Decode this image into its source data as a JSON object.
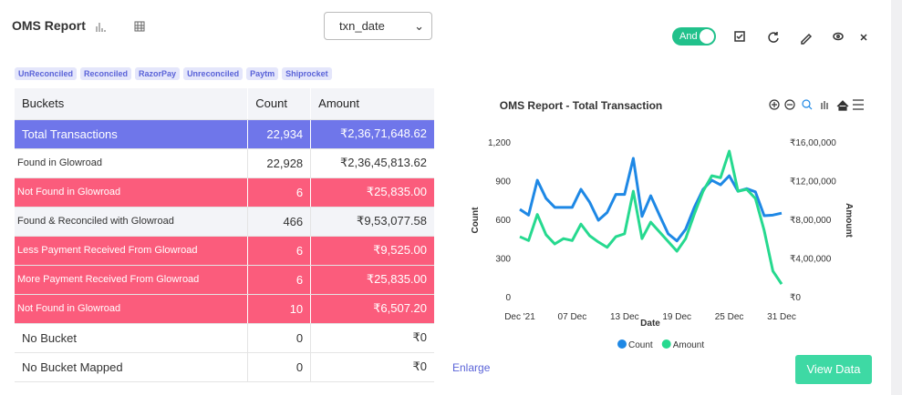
{
  "header": {
    "title": "OMS Report",
    "select": "txn_date",
    "toggle": "And"
  },
  "tags": [
    "UnReconciled",
    "Reconciled",
    "RazorPay",
    "Unreconciled",
    "Paytm",
    "Shiprocket"
  ],
  "table": {
    "columns": [
      "Buckets",
      "Count",
      "Amount"
    ],
    "rows": [
      {
        "cells": [
          "Total Transactions",
          "22,934",
          "₹2,36,71,648.62"
        ],
        "color": "#6f76ea"
      },
      {
        "cells": [
          "Found in  Glowroad",
          "22,928",
          "₹2,36,45,813.62"
        ],
        "color": "#ffffff"
      },
      {
        "cells": [
          "Not Found in Glowroad",
          "6",
          "₹25,835.00"
        ],
        "color": "#fb5c7c"
      },
      {
        "cells": [
          "Found & Reconciled with Glowroad",
          "466",
          "₹9,53,077.58"
        ],
        "color": "#f3f4f8"
      },
      {
        "cells": [
          "Less Payment Received From Glowroad",
          "6",
          "₹9,525.00"
        ],
        "color": "#fb5c7c"
      },
      {
        "cells": [
          "More Payment Received From Glowroad",
          "6",
          "₹25,835.00"
        ],
        "color": "#fb5c7c"
      },
      {
        "cells": [
          "Not Found in Glowroad",
          "10",
          "₹6,507.20"
        ],
        "color": "#fb5c7c"
      },
      {
        "cells": [
          "No Bucket",
          "0",
          "₹0"
        ],
        "color": "#ffffff"
      },
      {
        "cells": [
          "No Bucket Mapped",
          "0",
          "₹0"
        ],
        "color": "#ffffff"
      }
    ]
  },
  "chart": {
    "type": "line",
    "title": "OMS Report - Total Transaction",
    "x_label": "Date",
    "y_label": "Count",
    "y2_label": "Amount",
    "x": [
      1,
      2,
      3,
      4,
      5,
      6,
      7,
      8,
      9,
      10,
      11,
      12,
      13,
      14,
      15,
      16,
      17,
      18,
      19,
      20,
      21,
      22,
      23,
      24,
      25,
      26,
      27,
      28,
      29,
      30,
      31
    ],
    "xlim": [
      1,
      31
    ],
    "xticks": [
      {
        "value": 1,
        "label": "Dec '21"
      },
      {
        "value": 7,
        "label": "07 Dec"
      },
      {
        "value": 13,
        "label": "13 Dec"
      },
      {
        "value": 19,
        "label": "19 Dec"
      },
      {
        "value": 25,
        "label": "25 Dec"
      },
      {
        "value": 31,
        "label": "31 Dec"
      }
    ],
    "ylim": [
      0,
      1200
    ],
    "yticks": [
      0,
      300,
      600,
      900,
      {
        "value": 1200,
        "label": "1,200"
      }
    ],
    "y2lim": [
      0,
      1600000
    ],
    "y2ticks": [
      {
        "value": 0,
        "label": "₹0"
      },
      {
        "value": 400000,
        "label": "₹4,00,000"
      },
      {
        "value": 800000,
        "label": "₹8,00,000"
      },
      {
        "value": 1200000,
        "label": "₹12,00,000"
      },
      {
        "value": 1600000,
        "label": "₹16,00,000"
      }
    ],
    "grid": false,
    "legend": "bottom",
    "series": [
      {
        "name": "Count",
        "color": "#1e88e5",
        "values": [
          685,
          640,
          910,
          770,
          700,
          700,
          700,
          840,
          740,
          600,
          660,
          800,
          800,
          1080,
          630,
          790,
          640,
          495,
          440,
          530,
          700,
          840,
          910,
          875,
          945,
          825,
          845,
          820,
          635,
          640,
          655
        ]
      },
      {
        "name": "Amount",
        "color": "#26d98f",
        "axis": "y2",
        "values": [
          630000,
          590000,
          860000,
          650000,
          555000,
          610000,
          590000,
          760000,
          640000,
          575000,
          520000,
          630000,
          660000,
          1100000,
          610000,
          780000,
          680000,
          580000,
          480000,
          610000,
          865000,
          1100000,
          1260000,
          1240000,
          1515000,
          1100000,
          1120000,
          1025000,
          695000,
          275000,
          140000
        ]
      }
    ]
  },
  "links": {
    "enlarge": "Enlarge",
    "view": "View Data"
  }
}
